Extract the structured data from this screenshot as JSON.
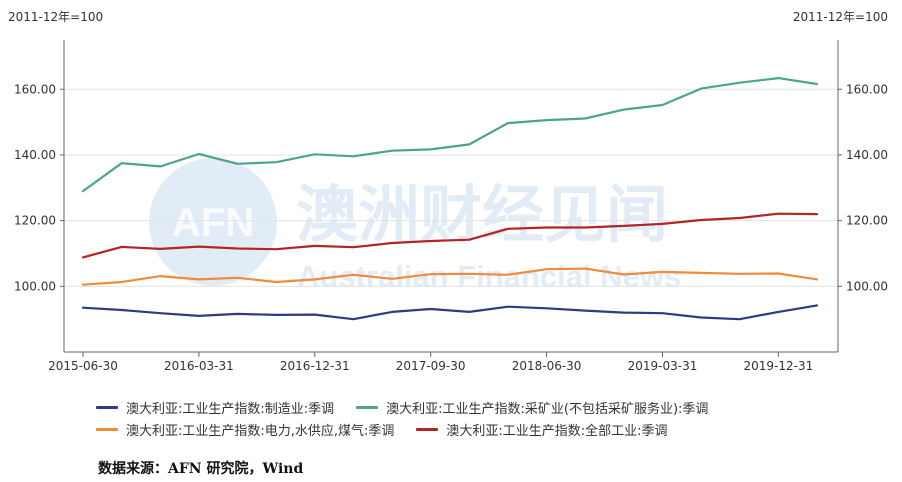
{
  "unit_left": "2011-12年=100",
  "unit_right": "2011-12年=100",
  "source": "数据来源：AFN 研究院，Wind",
  "watermark": {
    "logo_text": "AFN",
    "cn_text": "澳洲财经见闻",
    "en_text": "Australian Financial News"
  },
  "chart_data": {
    "type": "line",
    "title": "",
    "xlabel": "",
    "ylabel": "",
    "ylim": [
      80,
      175
    ],
    "y_ticks": [
      "100.00",
      "120.00",
      "140.00",
      "160.00"
    ],
    "y_tick_values": [
      100,
      120,
      140,
      160
    ],
    "x_ticks": [
      "2015-06-30",
      "2016-03-31",
      "2016-12-31",
      "2017-09-30",
      "2018-06-30",
      "2019-03-31",
      "2019-12-31"
    ],
    "x_tick_index": [
      0,
      3,
      6,
      9,
      12,
      15,
      18
    ],
    "x": [
      "2015-06-30",
      "2015-09-30",
      "2015-12-31",
      "2016-03-31",
      "2016-06-30",
      "2016-09-30",
      "2016-12-31",
      "2017-03-31",
      "2017-06-30",
      "2017-09-30",
      "2017-12-31",
      "2018-03-31",
      "2018-06-30",
      "2018-09-30",
      "2018-12-31",
      "2019-03-31",
      "2019-06-30",
      "2019-09-30",
      "2019-12-31",
      "2020-03-31"
    ],
    "grid": true,
    "legend_position": "bottom",
    "series": [
      {
        "name": "澳大利亚:工业生产指数:制造业:季调",
        "color": "#2e3a87",
        "values": [
          93.5,
          92.8,
          91.8,
          91.0,
          91.6,
          91.3,
          91.4,
          90.0,
          92.2,
          93.1,
          92.2,
          93.8,
          93.3,
          92.6,
          92.0,
          91.8,
          90.5,
          90.0,
          92.2,
          94.2
        ]
      },
      {
        "name": "澳大利亚:工业生产指数:采矿业(不包括采矿服务业):季调",
        "color": "#4aa68b",
        "values": [
          129.0,
          137.5,
          136.5,
          140.3,
          137.3,
          137.8,
          140.2,
          139.6,
          141.3,
          141.7,
          143.2,
          149.7,
          150.6,
          151.1,
          153.8,
          155.2,
          160.2,
          162.0,
          163.4,
          161.6
        ]
      },
      {
        "name": "澳大利亚:工业生产指数:电力,水供应,煤气:季调",
        "color": "#f08a3c",
        "values": [
          100.5,
          101.3,
          103.1,
          102.1,
          102.6,
          101.3,
          102.1,
          103.5,
          102.3,
          103.7,
          103.8,
          103.5,
          105.2,
          105.4,
          103.6,
          104.4,
          104.1,
          103.8,
          103.9,
          102.1
        ]
      },
      {
        "name": "澳大利亚:工业生产指数:全部工业:季调",
        "color": "#b52424",
        "values": [
          108.8,
          112.0,
          111.4,
          112.1,
          111.5,
          111.3,
          112.3,
          111.9,
          113.2,
          113.8,
          114.2,
          117.5,
          117.9,
          117.9,
          118.4,
          119.0,
          120.2,
          120.8,
          122.1,
          122.0
        ]
      }
    ]
  }
}
